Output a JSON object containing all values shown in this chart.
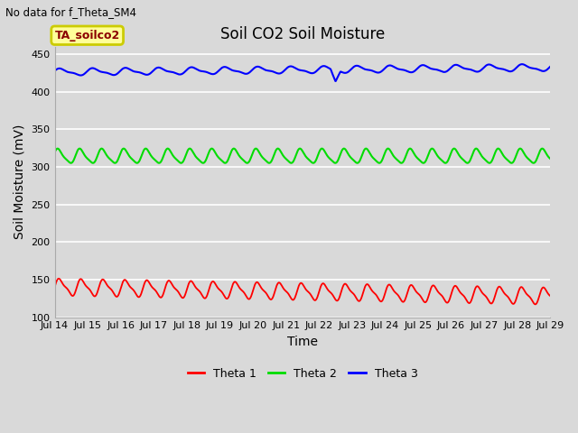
{
  "title": "Soil CO2 Soil Moisture",
  "top_left_text": "No data for f_Theta_SM4",
  "annotation_box": "TA_soilco2",
  "ylabel": "Soil Moisture (mV)",
  "xlabel": "Time",
  "ylim": [
    100,
    460
  ],
  "yticks": [
    100,
    150,
    200,
    250,
    300,
    350,
    400,
    450
  ],
  "x_tick_labels": [
    "Jul 14",
    "Jul 15",
    "Jul 16",
    "Jul 17",
    "Jul 18",
    "Jul 19",
    "Jul 20",
    "Jul 21",
    "Jul 22",
    "Jul 23",
    "Jul 24",
    "Jul 25",
    "Jul 26",
    "Jul 27",
    "Jul 28",
    "Jul 29"
  ],
  "background_color": "#d9d9d9",
  "plot_bg_color": "#d9d9d9",
  "grid_color": "#ffffff",
  "theta1_color": "#ff0000",
  "theta2_color": "#00dd00",
  "theta3_color": "#0000ff",
  "legend_labels": [
    "Theta 1",
    "Theta 2",
    "Theta 3"
  ],
  "title_fontsize": 12,
  "axis_label_fontsize": 10,
  "tick_fontsize": 8,
  "theta1_base": 140,
  "theta1_amp1": 10,
  "theta1_freq1": 1.5,
  "theta2_base": 314,
  "theta2_amp1": 9,
  "theta2_freq1": 1.5,
  "theta3_base": 426,
  "theta3_amp1": 4,
  "theta3_freq1": 1.0
}
